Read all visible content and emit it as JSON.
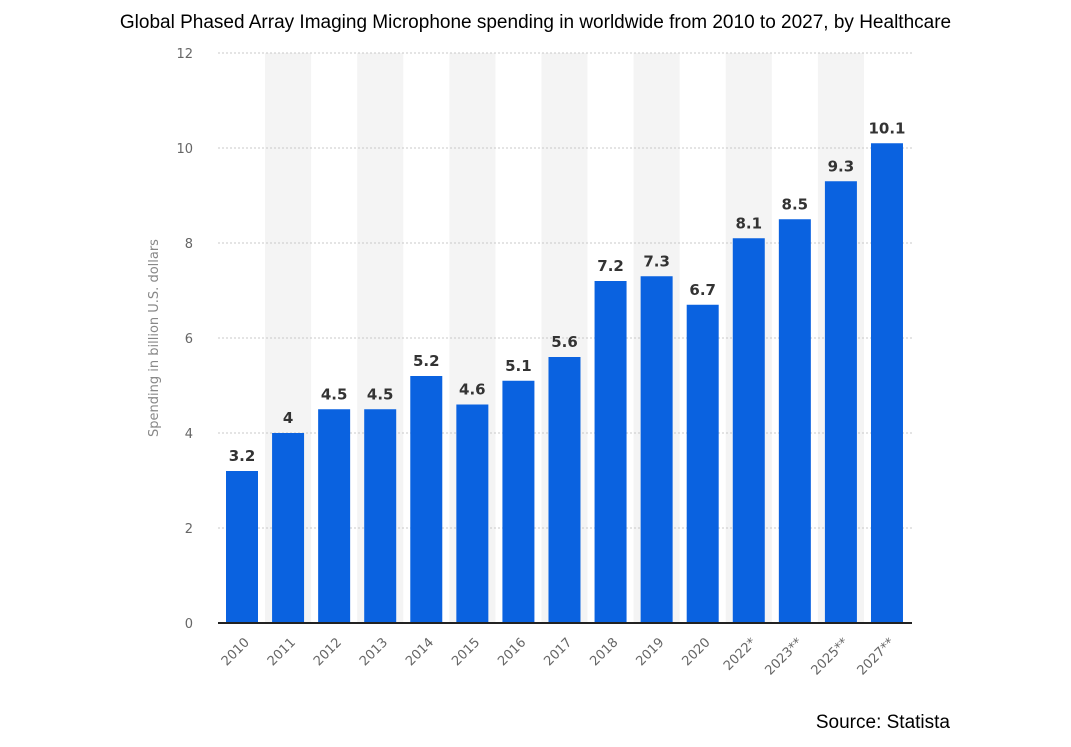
{
  "title": "Global Phased Array Imaging Microphone spending in worldwide from 2010 to 2027, by Healthcare",
  "source": "Source: Statista",
  "chart_data": {
    "type": "bar",
    "title": "Global Phased Array Imaging Microphone spending in worldwide from 2010 to 2027, by Healthcare",
    "xlabel": "",
    "ylabel": "Spending in billion U.S. dollars",
    "categories": [
      "2010",
      "2011",
      "2012",
      "2013",
      "2014",
      "2015",
      "2016",
      "2017",
      "2018",
      "2019",
      "2020",
      "2022*",
      "2023**",
      "2025**",
      "2027**"
    ],
    "values": [
      3.2,
      4,
      4.5,
      4.5,
      5.2,
      4.6,
      5.1,
      5.6,
      7.2,
      7.3,
      6.7,
      8.1,
      8.5,
      9.3,
      10.1
    ],
    "data_labels": [
      "3.2",
      "4",
      "4.5",
      "4.5",
      "5.2",
      "4.6",
      "5.1",
      "5.6",
      "7.2",
      "7.3",
      "6.7",
      "8.1",
      "8.5",
      "9.3",
      "10.1"
    ],
    "ylim": [
      0,
      12
    ],
    "yticks": [
      "0",
      "2",
      "4",
      "6",
      "8",
      "10",
      "12"
    ],
    "grid": true,
    "bar_color": "#0a62e0",
    "stripe_color": "#f4f4f4"
  }
}
